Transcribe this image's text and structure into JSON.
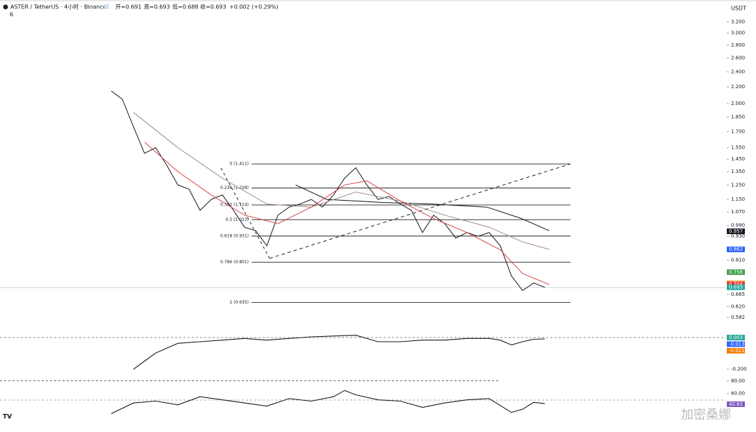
{
  "header": {
    "symbol": "ASTER / TetherUS · 4小时 · Binance",
    "open": "开=0.691",
    "high": "高=0.693",
    "low": "低=0.688",
    "close": "收=0.693",
    "change": "+0.002 (+0.29%)",
    "sub": "6",
    "currency": "USDT"
  },
  "chart_data": [
    {
      "type": "line",
      "log_scale": true,
      "x": [
        0,
        1,
        2,
        3,
        4,
        5,
        6,
        7,
        8,
        9,
        10,
        11,
        12,
        13,
        14,
        15,
        16,
        17,
        18,
        19,
        20,
        21,
        22,
        23,
        24,
        25,
        26,
        27,
        28,
        29,
        30,
        31,
        32,
        33,
        34,
        35,
        36,
        37,
        38,
        39
      ],
      "series": [
        {
          "color": "#26262b",
          "x": [
            0,
            1,
            2,
            3,
            4,
            5,
            6,
            7,
            8,
            9,
            10,
            11,
            12,
            13,
            14,
            15,
            16,
            17,
            18,
            19,
            20,
            21,
            22,
            23,
            24,
            25,
            26,
            27,
            28,
            29,
            30,
            31,
            32,
            33,
            34,
            35,
            36,
            37,
            38,
            39
          ],
          "values": [
            2.15,
            2.05,
            1.75,
            1.5,
            1.55,
            1.4,
            1.25,
            1.22,
            1.08,
            1.15,
            1.18,
            1.08,
            0.98,
            0.96,
            0.88,
            1.05,
            1.1,
            1.12,
            1.15,
            1.1,
            1.18,
            1.3,
            1.38,
            1.25,
            1.15,
            1.17,
            1.12,
            1.08,
            0.95,
            1.05,
            1.0,
            0.92,
            0.95,
            0.93,
            0.95,
            0.88,
            0.74,
            0.68,
            0.71,
            0.693
          ]
        },
        {
          "color": "#111111",
          "x": [
            16.6,
            19.4,
            24.4,
            28.8,
            33.8,
            36.9,
            39.4
          ],
          "values": [
            1.25,
            1.15,
            1.13,
            1.12,
            1.1,
            1.03,
            0.96
          ]
        },
        {
          "color": "#a08a7c",
          "x": [
            2,
            6,
            10,
            14,
            18,
            22,
            26,
            30,
            34,
            37,
            39.4
          ],
          "values": [
            1.9,
            1.55,
            1.3,
            1.12,
            1.1,
            1.2,
            1.14,
            1.05,
            0.98,
            0.9,
            0.862
          ]
        },
        {
          "color": "#d64545",
          "x": [
            3,
            6,
            9,
            12,
            15,
            18,
            21,
            23,
            26,
            29,
            32,
            35,
            37,
            39.4
          ],
          "values": [
            1.6,
            1.35,
            1.18,
            1.05,
            1.0,
            1.1,
            1.25,
            1.28,
            1.14,
            1.03,
            0.95,
            0.86,
            0.75,
            0.704
          ]
        }
      ],
      "xlim": [
        0,
        40
      ],
      "ylim": [
        0.564,
        3.56
      ],
      "yticks": [
        {
          "value": 3.2,
          "label": "3.200"
        },
        {
          "value": 3.0,
          "label": "3.000"
        },
        {
          "value": 2.8,
          "label": "2.800"
        },
        {
          "value": 2.6,
          "label": "2.600"
        },
        {
          "value": 2.4,
          "label": "2.400"
        },
        {
          "value": 2.2,
          "label": "2.200"
        },
        {
          "value": 2.0,
          "label": "2.000"
        },
        {
          "value": 1.85,
          "label": "1.850"
        },
        {
          "value": 1.7,
          "label": "1.700"
        },
        {
          "value": 1.55,
          "label": "1.550"
        },
        {
          "value": 1.45,
          "label": "1.450"
        },
        {
          "value": 1.35,
          "label": "1.350"
        },
        {
          "value": 1.25,
          "label": "1.250"
        },
        {
          "value": 1.15,
          "label": "1.150"
        },
        {
          "value": 1.07,
          "label": "1.070"
        },
        {
          "value": 0.99,
          "label": "0.990"
        },
        {
          "value": 0.93,
          "label": "0.930"
        },
        {
          "value": 0.81,
          "label": "0.810"
        },
        {
          "value": 0.665,
          "label": "0.665"
        },
        {
          "value": 0.62,
          "label": "0.620"
        },
        {
          "value": 0.582,
          "label": "0.582"
        }
      ],
      "fib_levels": [
        {
          "value": 1.411,
          "label": "0 (1.411)"
        },
        {
          "value": 1.228,
          "label": "0.236 (1.228)"
        },
        {
          "value": 1.114,
          "label": "0.382 (1.114)"
        },
        {
          "value": 1.023,
          "label": "0.5 (1.023)"
        },
        {
          "value": 0.931,
          "label": "0.618 (0.931)"
        },
        {
          "value": 0.801,
          "label": "0.786 (0.801)"
        },
        {
          "value": 0.635,
          "label": "1 (0.635)"
        }
      ],
      "badges": [
        {
          "value": 0.957,
          "label": "0.957",
          "color": "#131722"
        },
        {
          "value": 0.862,
          "label": "0.862",
          "color": "#2962ff"
        },
        {
          "value": 0.756,
          "label": "0.756",
          "color": "#43a047"
        },
        {
          "value": 0.708,
          "label": "0.708",
          "color": "#f57c00"
        },
        {
          "value": 0.704,
          "label": "0.704",
          "color": "#e53935"
        },
        {
          "value": 0.693,
          "label": "0.693",
          "color": "#26a69a"
        }
      ]
    },
    {
      "type": "line",
      "xlim": [
        0,
        40
      ],
      "ylim": [
        -0.27,
        0.03
      ],
      "yticks": [
        {
          "value": -0.2,
          "label": "-0.200"
        }
      ],
      "series": [
        {
          "color": "#131722",
          "x": [
            2,
            3,
            4,
            6,
            8,
            10,
            12,
            14,
            16,
            18,
            20,
            22,
            24,
            26,
            28,
            30,
            32,
            34,
            35,
            36,
            37,
            38,
            39
          ],
          "values": [
            -0.2,
            -0.15,
            -0.1,
            -0.04,
            -0.03,
            -0.02,
            -0.01,
            -0.02,
            -0.01,
            0.0,
            0.005,
            0.01,
            -0.03,
            -0.03,
            -0.02,
            -0.02,
            -0.01,
            -0.01,
            -0.02,
            -0.05,
            -0.03,
            -0.015,
            -0.013
          ]
        }
      ],
      "badges": [
        {
          "value": 0.003,
          "label": "0.003",
          "color": "#26a69a"
        },
        {
          "value": -0.013,
          "label": "-0.013",
          "color": "#2962ff"
        },
        {
          "value": -0.011,
          "label": "-0.011",
          "color": "#f57c00"
        }
      ]
    },
    {
      "type": "line",
      "xlim": [
        0,
        40
      ],
      "ylim": [
        22,
        84
      ],
      "yticks": [
        {
          "value": 80,
          "label": "80.00"
        },
        {
          "value": 60,
          "label": "60.00"
        }
      ],
      "series": [
        {
          "color": "#131722",
          "x": [
            0,
            2,
            4,
            6,
            8,
            10,
            12,
            14,
            16,
            18,
            20,
            21,
            22,
            24,
            26,
            28,
            30,
            32,
            34,
            36,
            37,
            38,
            39
          ],
          "values": [
            28,
            45,
            48,
            42,
            55,
            50,
            45,
            40,
            52,
            48,
            55,
            65,
            58,
            50,
            48,
            38,
            45,
            50,
            52,
            30,
            35,
            46,
            44
          ]
        }
      ],
      "badges": [
        {
          "value": 42.62,
          "label": "42.62",
          "color": "#7e57c2"
        }
      ]
    }
  ],
  "watermark": "加密桑娜"
}
